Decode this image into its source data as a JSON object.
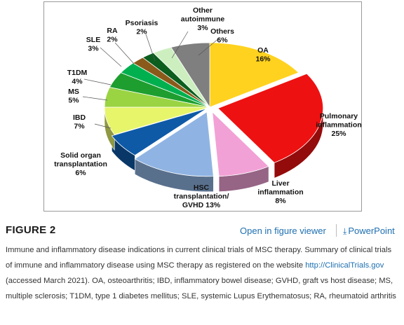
{
  "chart_data": {
    "type": "pie",
    "title": "",
    "slices": [
      {
        "name": "OA",
        "value": 16,
        "text": "16%",
        "color": "#FFD21F"
      },
      {
        "name": "Pulmonary inflammation",
        "value": 25,
        "text": "25%",
        "color": "#EE1111"
      },
      {
        "name": "Liver inflammation",
        "value": 8,
        "text": "8%",
        "color": "#F2A1D6"
      },
      {
        "name": "HSC transplantation/ GVHD",
        "value": 13,
        "text": "13%",
        "color": "#8FB4E3"
      },
      {
        "name": "Solid organ transplantation",
        "value": 6,
        "text": "6%",
        "color": "#0E5AA7"
      },
      {
        "name": "IBD",
        "value": 7,
        "text": "7%",
        "color": "#E6F56A"
      },
      {
        "name": "MS",
        "value": 5,
        "text": "5%",
        "color": "#9AD443"
      },
      {
        "name": "T1DM",
        "value": 4,
        "text": "4%",
        "color": "#1E9E2F"
      },
      {
        "name": "SLE",
        "value": 3,
        "text": "3%",
        "color": "#00B04F"
      },
      {
        "name": "RA",
        "value": 2,
        "text": "2%",
        "color": "#8A5A1A"
      },
      {
        "name": "Psoriasis",
        "value": 2,
        "text": "2%",
        "color": "#0B5E1E"
      },
      {
        "name": "Other autoimmune",
        "value": 3,
        "text": "3%",
        "color": "#CDEFC0"
      },
      {
        "name": "Others",
        "value": 6,
        "text": "6%",
        "color": "#7F7F7F"
      }
    ],
    "labels": [
      {
        "lines": [
          "OA",
          "16%"
        ]
      },
      {
        "lines": [
          "Pulmonary",
          "inflammation",
          "25%"
        ]
      },
      {
        "lines": [
          "Liver",
          "inflammation",
          "8%"
        ]
      },
      {
        "lines": [
          "HSC",
          "transplantation/",
          "GVHD 13%"
        ]
      },
      {
        "lines": [
          "Solid organ",
          "transplantation",
          "6%"
        ]
      },
      {
        "lines": [
          "IBD",
          "7%"
        ]
      },
      {
        "lines": [
          "MS",
          "5%"
        ]
      },
      {
        "lines": [
          "T1DM",
          "4%"
        ]
      },
      {
        "lines": [
          "SLE",
          "3%"
        ]
      },
      {
        "lines": [
          "RA",
          "2%"
        ]
      },
      {
        "lines": [
          "Psoriasis",
          "2%"
        ]
      },
      {
        "lines": [
          "Other",
          "autoimmune",
          "3%"
        ]
      },
      {
        "lines": [
          "Others",
          "6%"
        ]
      }
    ]
  },
  "figure": {
    "title": "FIGURE 2",
    "viewer_link": "Open in figure viewer",
    "powerpoint_link": "PowerPoint",
    "caption_before_link": "Immune and inflammatory disease indications in current clinical trials of MSC therapy. Summary of clinical trials of immune and inflammatory disease using MSC therapy as registered on the website ",
    "caption_link": "http://ClinicalTrials.gov",
    "caption_after_link": " (accessed March 2021). OA, osteoarthritis; IBD, inflammatory bowel disease; GVHD, graft vs host disease; MS, multiple sclerosis; T1DM, type 1 diabetes mellitus; SLE, systemic Lupus Erythematosus; RA, rheumatoid arthritis"
  }
}
